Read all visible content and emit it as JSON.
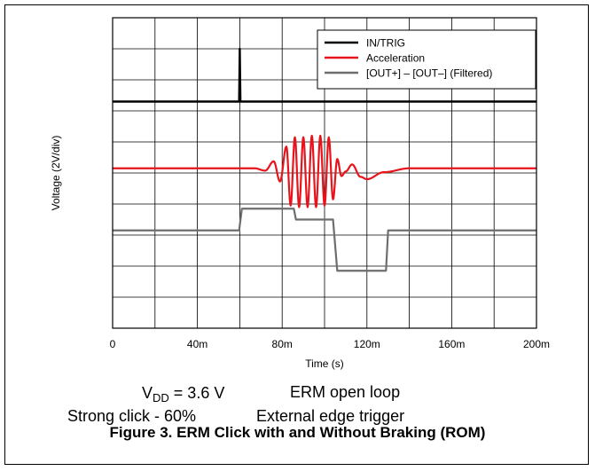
{
  "chart_data": {
    "type": "line",
    "ylabel": "Voltage (2V/div)",
    "xlabel": "Time (s)",
    "x_ticks": [
      "0",
      "40m",
      "80m",
      "120m",
      "160m",
      "200m"
    ],
    "xlim": [
      0,
      0.2
    ],
    "ylim": [
      -10,
      10
    ],
    "grid": true,
    "legend_position": "top-right",
    "series": [
      {
        "name": "IN/TRIG",
        "color": "#000000",
        "x": [
          0,
          0.0597,
          0.06,
          0.0603,
          0.2
        ],
        "y": [
          4.6,
          4.6,
          8.0,
          4.6,
          4.6
        ]
      },
      {
        "name": "Acceleration",
        "color": "#e8141c",
        "x": [
          0,
          0.067,
          0.072,
          0.076,
          0.079,
          0.082,
          0.084,
          0.086,
          0.088,
          0.09,
          0.092,
          0.094,
          0.096,
          0.098,
          0.1,
          0.102,
          0.104,
          0.106,
          0.108,
          0.11,
          0.113,
          0.117,
          0.12,
          0.128,
          0.14,
          0.2
        ],
        "y": [
          0.3,
          0.3,
          0.15,
          0.75,
          -0.55,
          1.7,
          -2.1,
          2.3,
          -2.2,
          2.3,
          -2.2,
          2.4,
          -2.2,
          2.4,
          -2.1,
          2.3,
          -1.7,
          0.9,
          -0.2,
          0.1,
          0.55,
          -0.25,
          -0.4,
          0.05,
          0.3,
          0.3
        ]
      },
      {
        "name": "[OUT+] – [OUT–] (Filtered)",
        "color": "#6e6e6e",
        "x": [
          0,
          0.0597,
          0.061,
          0.0855,
          0.0865,
          0.104,
          0.106,
          0.129,
          0.13,
          0.2
        ],
        "y": [
          -3.7,
          -3.7,
          -2.3,
          -2.3,
          -3.0,
          -3.0,
          -6.3,
          -6.3,
          -3.7,
          -3.7
        ]
      }
    ]
  },
  "notes": {
    "vdd_prefix": "V",
    "vdd_sub": "DD",
    "vdd_value": " = 3.6 V",
    "mode": "ERM open loop",
    "click": "Strong click - 60%",
    "trigger": "External edge trigger"
  },
  "caption": "Figure 3. ERM Click with and Without Braking (ROM)"
}
